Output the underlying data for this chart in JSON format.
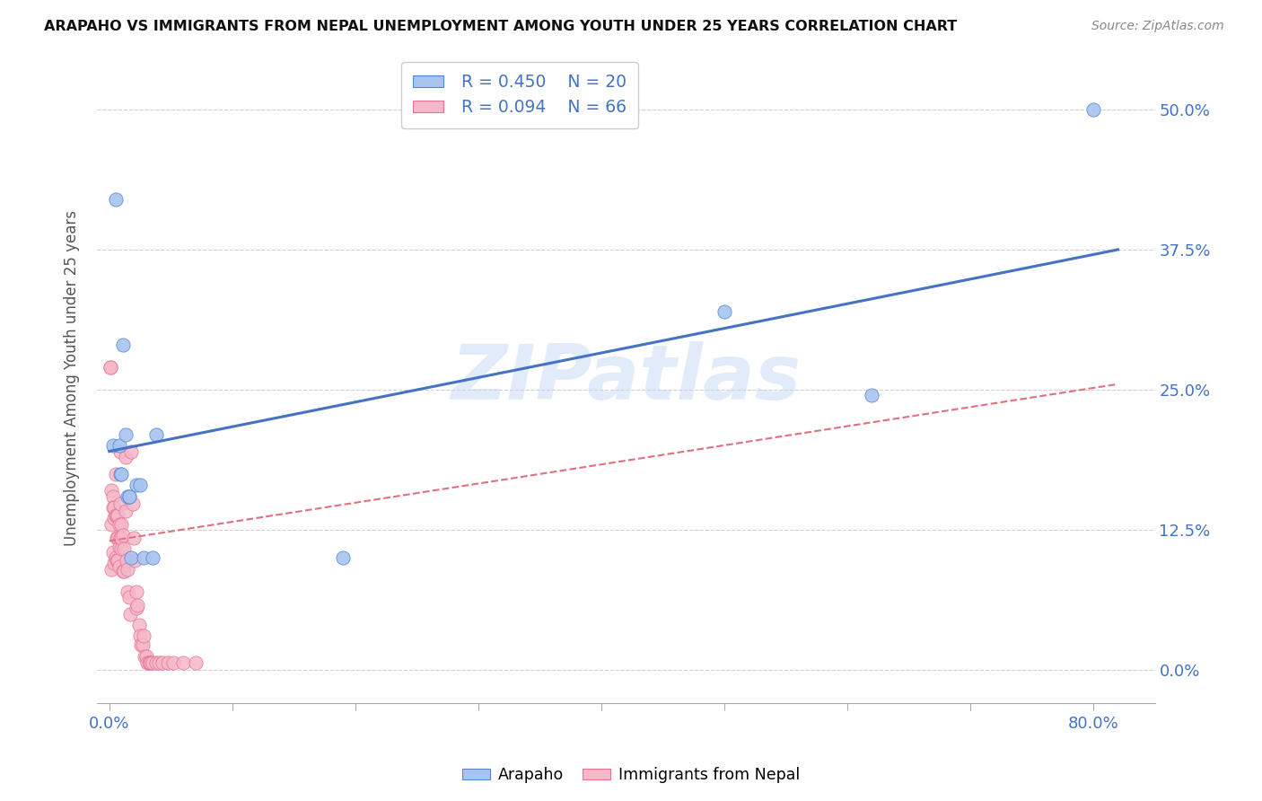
{
  "title": "ARAPAHO VS IMMIGRANTS FROM NEPAL UNEMPLOYMENT AMONG YOUTH UNDER 25 YEARS CORRELATION CHART",
  "source": "Source: ZipAtlas.com",
  "ylabel": "Unemployment Among Youth under 25 years",
  "ytick_labels": [
    "0.0%",
    "12.5%",
    "25.0%",
    "37.5%",
    "50.0%"
  ],
  "ytick_values": [
    0.0,
    0.125,
    0.25,
    0.375,
    0.5
  ],
  "xtick_values": [
    0.0,
    0.1,
    0.2,
    0.3,
    0.4,
    0.5,
    0.6,
    0.7,
    0.8
  ],
  "xlim": [
    -0.01,
    0.85
  ],
  "ylim": [
    -0.03,
    0.55
  ],
  "arapaho_color": "#a8c4f0",
  "nepal_color": "#f5b8c8",
  "arapaho_edge_color": "#5585d5",
  "nepal_edge_color": "#e87090",
  "arapaho_line_color": "#4472c4",
  "nepal_line_color": "#e07080",
  "legend_R_arapaho": "R = 0.450",
  "legend_N_arapaho": "N = 20",
  "legend_R_nepal": "R = 0.094",
  "legend_N_nepal": "N = 66",
  "arapaho_x": [
    0.003,
    0.005,
    0.008,
    0.009,
    0.01,
    0.011,
    0.013,
    0.015,
    0.016,
    0.016,
    0.018,
    0.022,
    0.025,
    0.028,
    0.035,
    0.038,
    0.19,
    0.5,
    0.62,
    0.8
  ],
  "arapaho_y": [
    0.2,
    0.42,
    0.2,
    0.175,
    0.175,
    0.29,
    0.21,
    0.155,
    0.155,
    0.155,
    0.1,
    0.165,
    0.165,
    0.1,
    0.1,
    0.21,
    0.1,
    0.32,
    0.245,
    0.5
  ],
  "nepal_x": [
    0.001,
    0.001,
    0.002,
    0.002,
    0.002,
    0.003,
    0.003,
    0.003,
    0.004,
    0.004,
    0.004,
    0.005,
    0.005,
    0.005,
    0.006,
    0.006,
    0.006,
    0.007,
    0.007,
    0.007,
    0.008,
    0.008,
    0.008,
    0.009,
    0.009,
    0.009,
    0.01,
    0.01,
    0.01,
    0.011,
    0.011,
    0.012,
    0.012,
    0.013,
    0.013,
    0.014,
    0.015,
    0.015,
    0.016,
    0.017,
    0.018,
    0.019,
    0.02,
    0.021,
    0.022,
    0.022,
    0.023,
    0.024,
    0.025,
    0.026,
    0.027,
    0.028,
    0.029,
    0.03,
    0.031,
    0.032,
    0.033,
    0.034,
    0.035,
    0.038,
    0.04,
    0.043,
    0.048,
    0.052,
    0.06,
    0.07
  ],
  "nepal_y": [
    0.27,
    0.27,
    0.16,
    0.13,
    0.09,
    0.155,
    0.145,
    0.105,
    0.145,
    0.135,
    0.095,
    0.175,
    0.138,
    0.1,
    0.138,
    0.118,
    0.098,
    0.138,
    0.118,
    0.098,
    0.13,
    0.11,
    0.092,
    0.195,
    0.148,
    0.118,
    0.13,
    0.108,
    0.118,
    0.088,
    0.12,
    0.088,
    0.108,
    0.19,
    0.142,
    0.098,
    0.09,
    0.07,
    0.065,
    0.05,
    0.195,
    0.148,
    0.118,
    0.098,
    0.07,
    0.055,
    0.058,
    0.04,
    0.03,
    0.022,
    0.022,
    0.03,
    0.012,
    0.012,
    0.006,
    0.006,
    0.006,
    0.006,
    0.006,
    0.006,
    0.006,
    0.006,
    0.006,
    0.006,
    0.006,
    0.006
  ],
  "watermark": "ZIPatlas",
  "arapaho_trend_x0": 0.0,
  "arapaho_trend_x1": 0.82,
  "arapaho_trend_y0": 0.195,
  "arapaho_trend_y1": 0.375,
  "nepal_trend_x0": 0.0,
  "nepal_trend_x1": 0.82,
  "nepal_trend_y0": 0.115,
  "nepal_trend_y1": 0.255
}
